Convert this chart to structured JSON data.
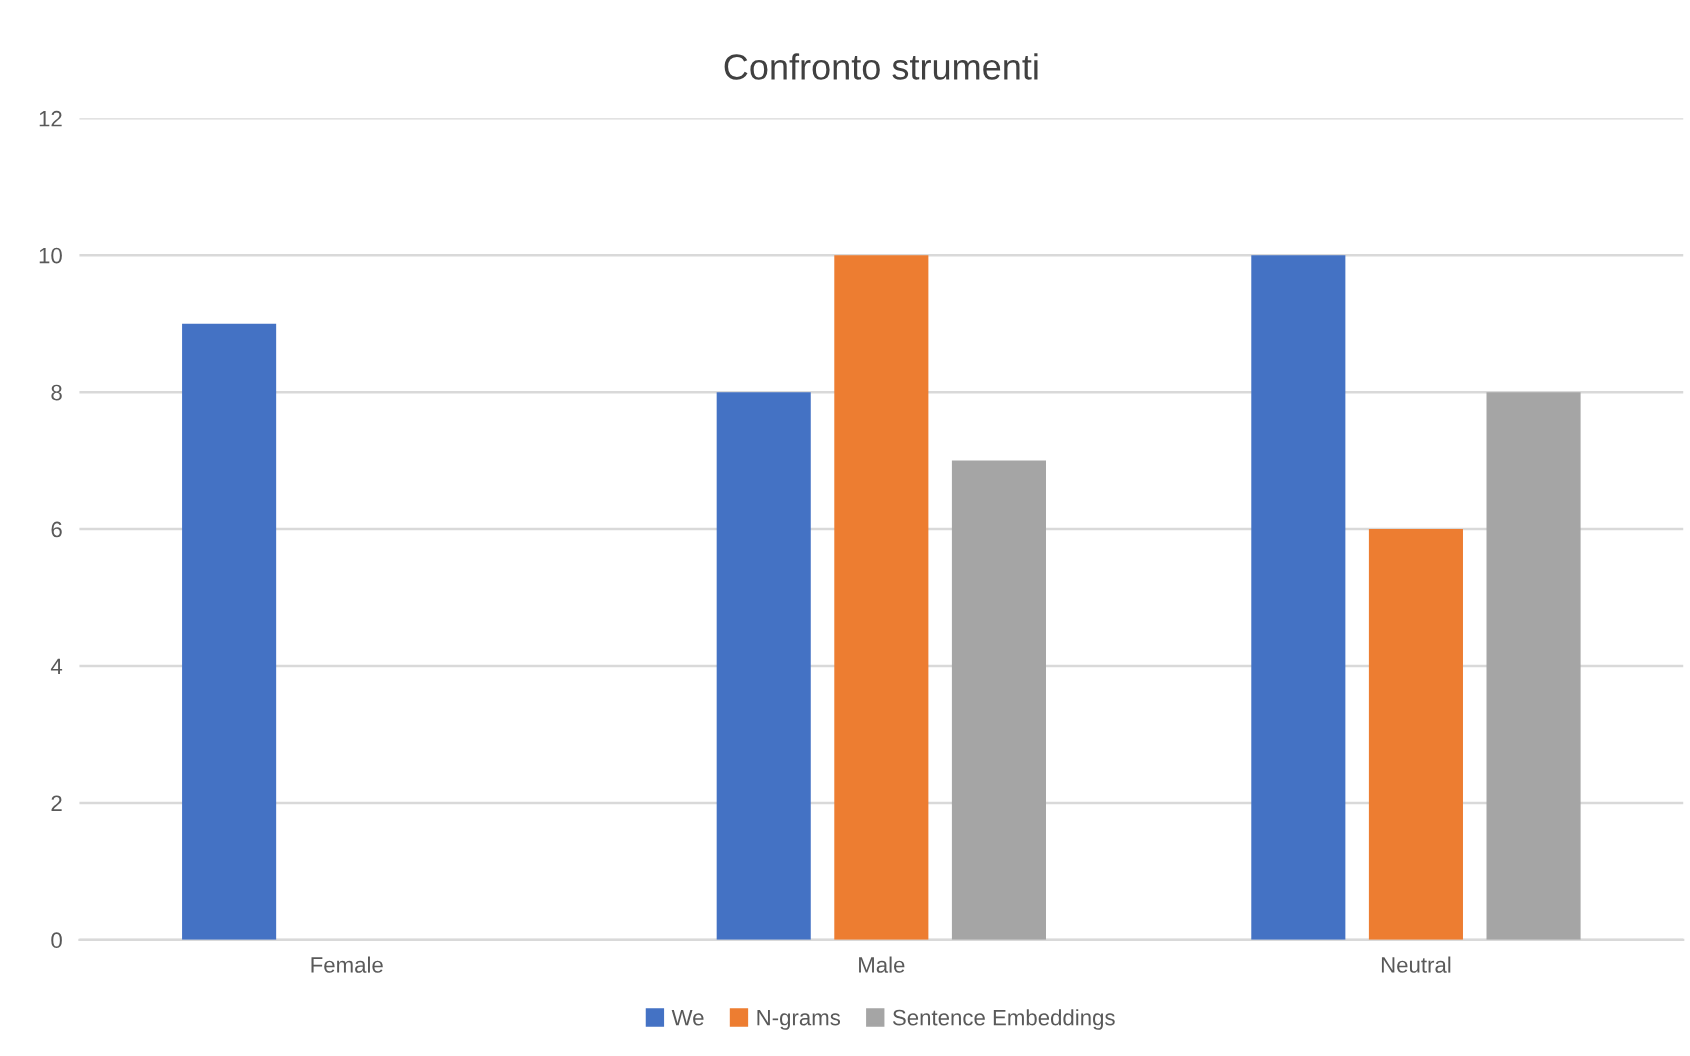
{
  "chart_data": {
    "type": "bar",
    "title": "Confronto strumenti",
    "categories": [
      "Female",
      "Male",
      "Neutral"
    ],
    "series": [
      {
        "name": "We",
        "color": "#4472c4",
        "values": [
          9,
          8,
          10
        ]
      },
      {
        "name": "N-grams",
        "color": "#ed7d31",
        "values": [
          null,
          10,
          6
        ]
      },
      {
        "name": "Sentence Embeddings",
        "color": "#a5a5a5",
        "values": [
          null,
          7,
          8
        ]
      }
    ],
    "ylim": [
      0,
      12
    ],
    "yticks": [
      0,
      2,
      4,
      6,
      8,
      10,
      12
    ],
    "grid": "y",
    "legend": "bottom"
  }
}
